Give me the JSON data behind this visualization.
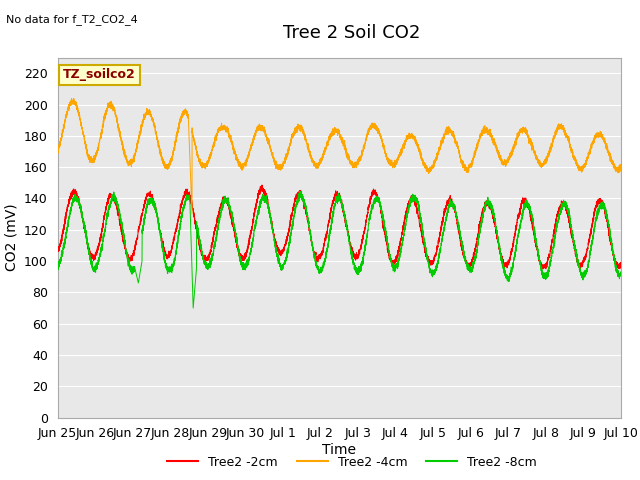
{
  "title": "Tree 2 Soil CO2",
  "no_data_text": "No data for f_T2_CO2_4",
  "ylabel": "CO2 (mV)",
  "xlabel": "Time",
  "annotation": "TZ_soilco2",
  "ylim": [
    0,
    230
  ],
  "yticks": [
    0,
    20,
    40,
    60,
    80,
    100,
    120,
    140,
    160,
    180,
    200,
    220
  ],
  "xtick_labels": [
    "Jun 25",
    "Jun 26",
    "Jun 27",
    "Jun 28",
    "Jun 29",
    "Jun 30",
    "Jul 1",
    "Jul 2",
    "Jul 3",
    "Jul 4",
    "Jul 5",
    "Jul 6",
    "Jul 7",
    "Jul 8",
    "Jul 9",
    "Jul 10"
  ],
  "colors": {
    "2cm": "#FF0000",
    "4cm": "#FFA500",
    "8cm": "#00CC00",
    "background_upper": "#E8E8E8",
    "background_lower": "#D8D8D8",
    "grid": "#FFFFFF",
    "annotation_bg": "#FFFFCC",
    "annotation_border": "#CCAA00"
  },
  "legend_labels": [
    "Tree2 -2cm",
    "Tree2 -4cm",
    "Tree2 -8cm"
  ],
  "title_fontsize": 13,
  "label_fontsize": 10,
  "tick_fontsize": 9
}
